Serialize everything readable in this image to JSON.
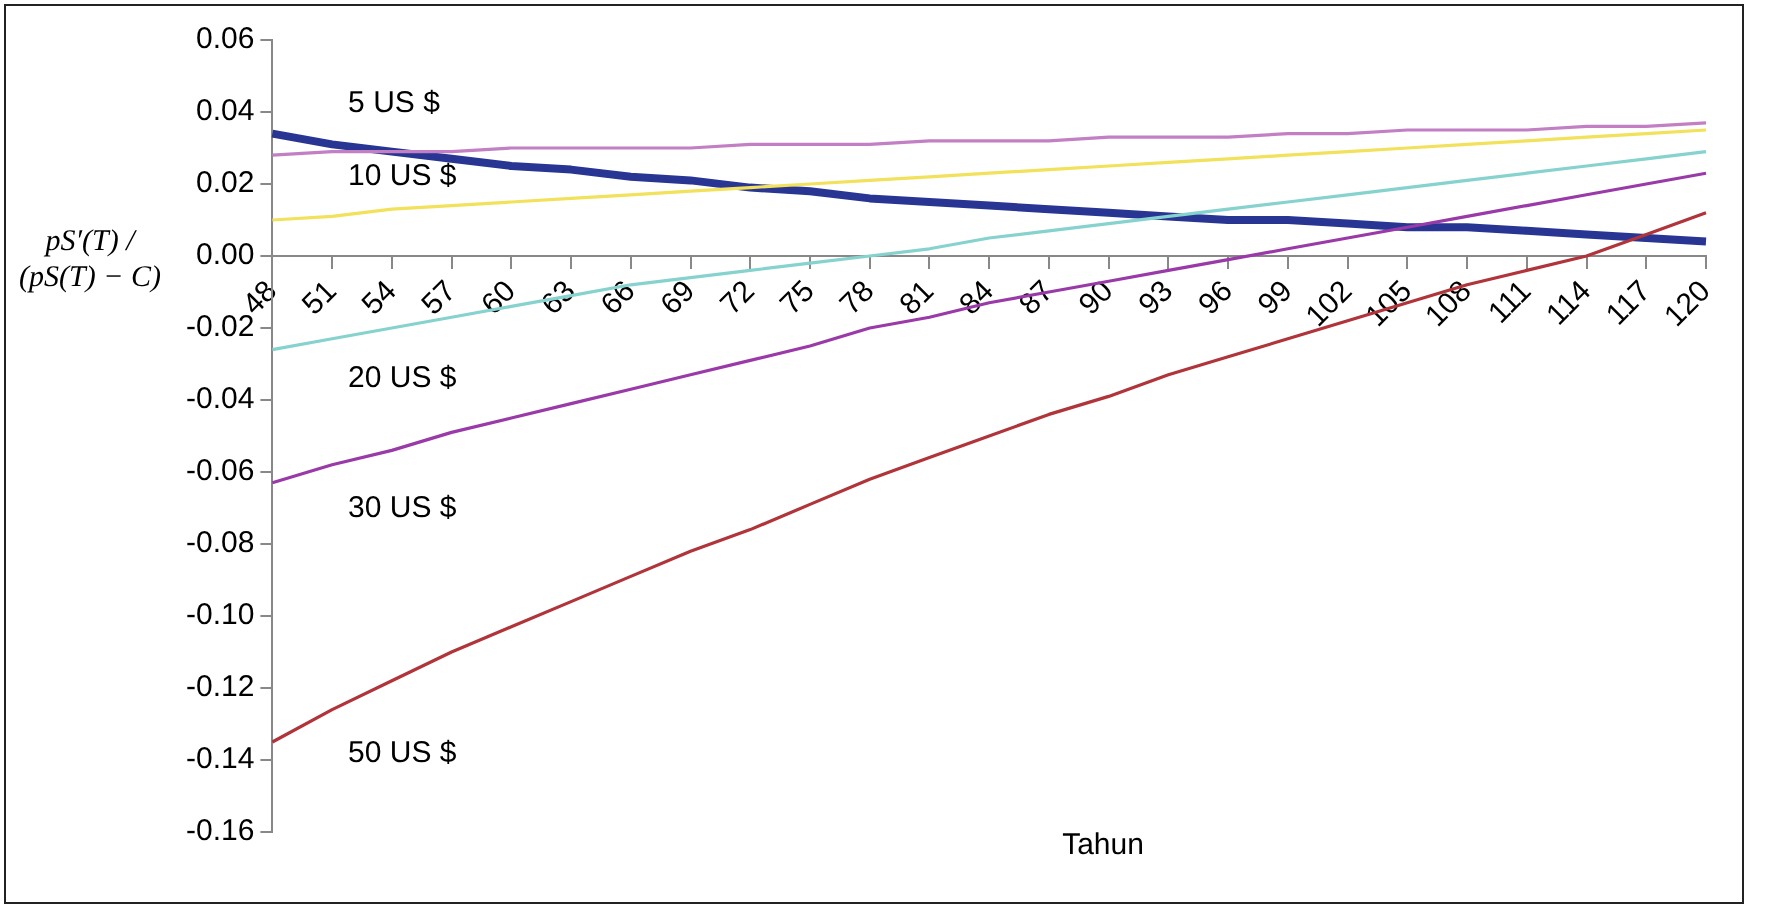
{
  "chart_data": {
    "type": "line",
    "xlabel": "Tahun",
    "ylabel": "pS′(T) / (pS(T) − C)",
    "categories": [
      "48",
      "51",
      "54",
      "57",
      "60",
      "63",
      "66",
      "69",
      "72",
      "75",
      "78",
      "81",
      "84",
      "87",
      "90",
      "93",
      "96",
      "99",
      "102",
      "105",
      "108",
      "111",
      "114",
      "117",
      "120"
    ],
    "ylim": [
      -0.16,
      0.06
    ],
    "yticks": [
      {
        "value": -0.16,
        "label": "-0.16"
      },
      {
        "value": -0.14,
        "label": "-0.14"
      },
      {
        "value": -0.12,
        "label": "-0.12"
      },
      {
        "value": -0.1,
        "label": "-0.10"
      },
      {
        "value": -0.08,
        "label": "-0.08"
      },
      {
        "value": -0.06,
        "label": "-0.06"
      },
      {
        "value": -0.04,
        "label": "-0.04"
      },
      {
        "value": -0.02,
        "label": "-0.02"
      },
      {
        "value": 0,
        "label": "0.00"
      },
      {
        "value": 0.02,
        "label": "0.02"
      },
      {
        "value": 0.04,
        "label": "0.04"
      },
      {
        "value": 0.06,
        "label": "0.06"
      }
    ],
    "grid": false,
    "legend": false,
    "marker": "none",
    "line_style": "solid",
    "series": [
      {
        "name": "5 US $",
        "color": "#c27fc4",
        "values": [
          0.028,
          0.029,
          0.029,
          0.029,
          0.03,
          0.03,
          0.03,
          0.03,
          0.031,
          0.031,
          0.031,
          0.032,
          0.032,
          0.032,
          0.033,
          0.033,
          0.033,
          0.034,
          0.034,
          0.035,
          0.035,
          0.035,
          0.036,
          0.036,
          0.037
        ]
      },
      {
        "name": "10 US $",
        "color": "#f2e15a",
        "values": [
          0.01,
          0.011,
          0.013,
          0.014,
          0.015,
          0.016,
          0.017,
          0.018,
          0.019,
          0.02,
          0.021,
          0.022,
          0.023,
          0.024,
          0.025,
          0.026,
          0.027,
          0.028,
          0.029,
          0.03,
          0.031,
          0.032,
          0.033,
          0.034,
          0.035
        ]
      },
      {
        "name": "20 US $",
        "color": "#86d2cf",
        "values": [
          -0.026,
          -0.023,
          -0.02,
          -0.017,
          -0.014,
          -0.011,
          -0.008,
          -0.006,
          -0.004,
          -0.002,
          0.0,
          0.002,
          0.005,
          0.007,
          0.009,
          0.011,
          0.013,
          0.015,
          0.017,
          0.019,
          0.021,
          0.023,
          0.025,
          0.027,
          0.029
        ]
      },
      {
        "name": "30 US $",
        "color": "#9a3aa8",
        "values": [
          -0.063,
          -0.058,
          -0.054,
          -0.049,
          -0.045,
          -0.041,
          -0.037,
          -0.033,
          -0.029,
          -0.025,
          -0.02,
          -0.017,
          -0.013,
          -0.01,
          -0.007,
          -0.004,
          -0.001,
          0.002,
          0.005,
          0.008,
          0.011,
          0.014,
          0.017,
          0.02,
          0.023
        ]
      },
      {
        "name": "50 US $",
        "color": "#b0343a",
        "values": [
          -0.135,
          -0.126,
          -0.118,
          -0.11,
          -0.103,
          -0.096,
          -0.089,
          -0.082,
          -0.076,
          -0.069,
          -0.062,
          -0.056,
          -0.05,
          -0.044,
          -0.039,
          -0.033,
          -0.028,
          -0.023,
          -0.018,
          -0.013,
          -0.008,
          -0.004,
          0.0,
          0.006,
          0.012
        ]
      },
      {
        "color": "#283593",
        "values": [
          0.034,
          0.031,
          0.029,
          0.027,
          0.025,
          0.024,
          0.022,
          0.021,
          0.019,
          0.018,
          0.016,
          0.015,
          0.014,
          0.013,
          0.012,
          0.011,
          0.01,
          0.01,
          0.009,
          0.008,
          0.008,
          0.007,
          0.006,
          0.005,
          0.004
        ]
      }
    ]
  }
}
